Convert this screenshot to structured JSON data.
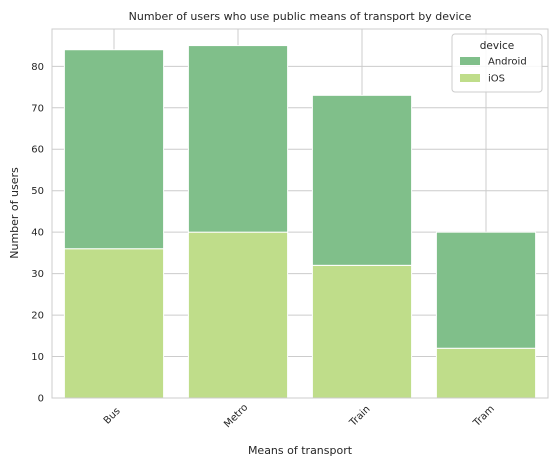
{
  "chart_data": {
    "type": "bar",
    "stacked": true,
    "title": "Number of users who use public means of transport by device",
    "xlabel": "Means of transport",
    "ylabel": "Number of users",
    "categories": [
      "Bus",
      "Metro",
      "Train",
      "Tram"
    ],
    "series": [
      {
        "name": "iOS",
        "values": [
          36,
          40,
          32,
          12
        ],
        "color": "#bfdd8a"
      },
      {
        "name": "Android",
        "values": [
          48,
          45,
          41,
          28
        ],
        "color": "#80bf8a"
      }
    ],
    "ylim": [
      0,
      89
    ],
    "yticks": [
      0,
      10,
      20,
      30,
      40,
      50,
      60,
      70,
      80
    ],
    "grid": true,
    "legend": {
      "title": "device",
      "placement": "top-right",
      "entries": [
        "Android",
        "iOS"
      ]
    }
  }
}
